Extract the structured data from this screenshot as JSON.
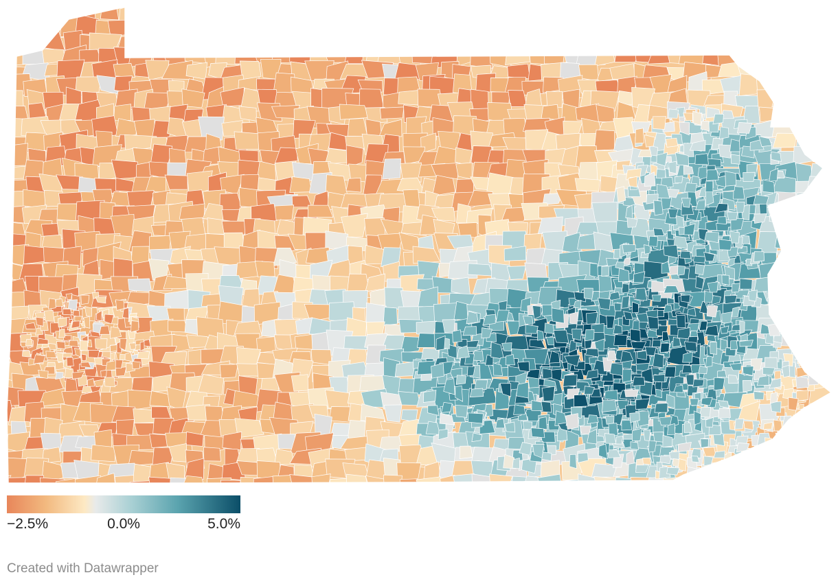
{
  "map": {
    "region": "Pennsylvania",
    "unit_type": "municipalities",
    "no_data_color": "#e0e0e0",
    "boundary_color": "#ffffff"
  },
  "legend": {
    "type": "continuous",
    "stops": [
      {
        "value": -2.5,
        "color": "#e8865a"
      },
      {
        "value": -1.25,
        "color": "#f2b97f"
      },
      {
        "value": 0.0,
        "color": "#fde9c4"
      },
      {
        "value": 0.35,
        "color": "#e8eaea"
      },
      {
        "value": 1.5,
        "color": "#a9d0d4"
      },
      {
        "value": 3.0,
        "color": "#5aa3ae"
      },
      {
        "value": 5.0,
        "color": "#0b4e68"
      }
    ],
    "min_label": "−2.5%",
    "mid_label": "0.0%",
    "max_label": "5.0%"
  },
  "footer": {
    "credit": "Created with Datawrapper"
  }
}
